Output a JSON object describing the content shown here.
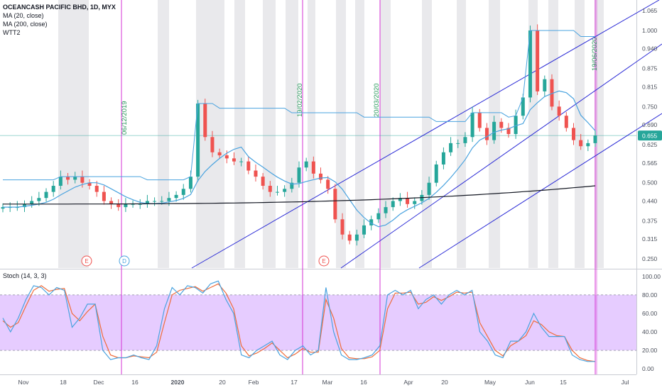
{
  "legend": {
    "title": "OCEANCASH PACIFIC BHD, 1D, MYX",
    "ma20": "MA (20, close)",
    "ma200": "MA (200, close)",
    "wtt2": "WTT2"
  },
  "stoch_label": "Stoch (14, 3, 3)",
  "last_price": "0.655",
  "colors": {
    "up": "#26a69a",
    "down": "#ef5350",
    "ma20": "#4aa3df",
    "ma200": "#131722",
    "channel": "#2b2bd6",
    "vline": "#d633d6",
    "stoch_k": "#4aa3df",
    "stoch_d": "#ef6c3a",
    "stoch_band": "#e6ccff",
    "shade": "#e9e9ec",
    "price_tag": "#26a69a"
  },
  "vline_labels": [
    "06/12/2019",
    "19/02/2020",
    "20/03/2020",
    "19/06/2020"
  ],
  "markers": [
    "E",
    "D",
    "E"
  ],
  "chart_data": [
    {
      "type": "candlestick",
      "title": "OCEANCASH PACIFIC BHD, 1D, MYX",
      "ylim": [
        0.22,
        1.1
      ],
      "y_ticks": [
        "1.065",
        "1.000",
        "0.940",
        "0.875",
        "0.815",
        "0.750",
        "0.690",
        "0.625",
        "0.565",
        "0.500",
        "0.440",
        "0.375",
        "0.315",
        "0.250"
      ],
      "x_ticks": [
        "Nov",
        "18",
        "Dec",
        "16",
        "2020",
        "20",
        "Feb",
        "17",
        "Mar",
        "16",
        "Apr",
        "20",
        "May",
        "Jun",
        "15",
        "Jul"
      ],
      "series": [
        {
          "name": "MA (20, close)"
        },
        {
          "name": "MA (200, close)"
        },
        {
          "name": "WTT2"
        }
      ],
      "close_path": [
        0.42,
        0.42,
        0.42,
        0.43,
        0.44,
        0.45,
        0.47,
        0.49,
        0.52,
        0.51,
        0.52,
        0.5,
        0.49,
        0.47,
        0.44,
        0.43,
        0.42,
        0.43,
        0.43,
        0.43,
        0.44,
        0.44,
        0.44,
        0.45,
        0.46,
        0.48,
        0.52,
        0.76,
        0.65,
        0.6,
        0.59,
        0.58,
        0.57,
        0.57,
        0.54,
        0.52,
        0.49,
        0.47,
        0.47,
        0.48,
        0.5,
        0.55,
        0.57,
        0.53,
        0.51,
        0.48,
        0.38,
        0.33,
        0.31,
        0.33,
        0.36,
        0.38,
        0.4,
        0.42,
        0.44,
        0.45,
        0.43,
        0.44,
        0.46,
        0.5,
        0.56,
        0.6,
        0.63,
        0.63,
        0.65,
        0.73,
        0.68,
        0.64,
        0.7,
        0.68,
        0.66,
        0.72,
        0.78,
        1.0,
        0.8,
        0.84,
        0.75,
        0.72,
        0.68,
        0.64,
        0.62,
        0.63,
        0.655
      ],
      "last_close": 0.655,
      "ma200_end": 0.49,
      "stochastic": {
        "title": "Stoch (14, 3, 3)",
        "ylim": [
          -6,
          106
        ],
        "y_ticks": [
          "100.00",
          "80.00",
          "60.00",
          "40.00",
          "20.00",
          "0.00"
        ],
        "band": [
          20,
          80
        ],
        "k": [
          55,
          40,
          55,
          75,
          90,
          88,
          80,
          88,
          85,
          45,
          55,
          70,
          70,
          20,
          10,
          12,
          12,
          15,
          12,
          10,
          25,
          65,
          88,
          80,
          90,
          88,
          82,
          92,
          95,
          75,
          60,
          15,
          12,
          20,
          25,
          30,
          15,
          10,
          20,
          25,
          15,
          20,
          88,
          40,
          15,
          10,
          10,
          12,
          15,
          25,
          80,
          85,
          80,
          85,
          65,
          75,
          80,
          70,
          80,
          85,
          80,
          85,
          40,
          30,
          15,
          12,
          30,
          30,
          40,
          60,
          45,
          35,
          35,
          35,
          15,
          10,
          8,
          8
        ],
        "d": [
          52,
          45,
          50,
          68,
          85,
          90,
          84,
          86,
          87,
          60,
          52,
          62,
          70,
          35,
          15,
          12,
          12,
          14,
          13,
          12,
          18,
          50,
          80,
          85,
          87,
          89,
          84,
          88,
          92,
          82,
          65,
          25,
          14,
          17,
          22,
          28,
          20,
          12,
          16,
          22,
          18,
          18,
          75,
          55,
          22,
          12,
          11,
          11,
          13,
          20,
          65,
          82,
          82,
          83,
          70,
          72,
          78,
          74,
          78,
          83,
          82,
          83,
          50,
          35,
          20,
          14,
          25,
          30,
          36,
          52,
          48,
          40,
          36,
          35,
          20,
          12,
          9,
          8
        ]
      }
    }
  ]
}
